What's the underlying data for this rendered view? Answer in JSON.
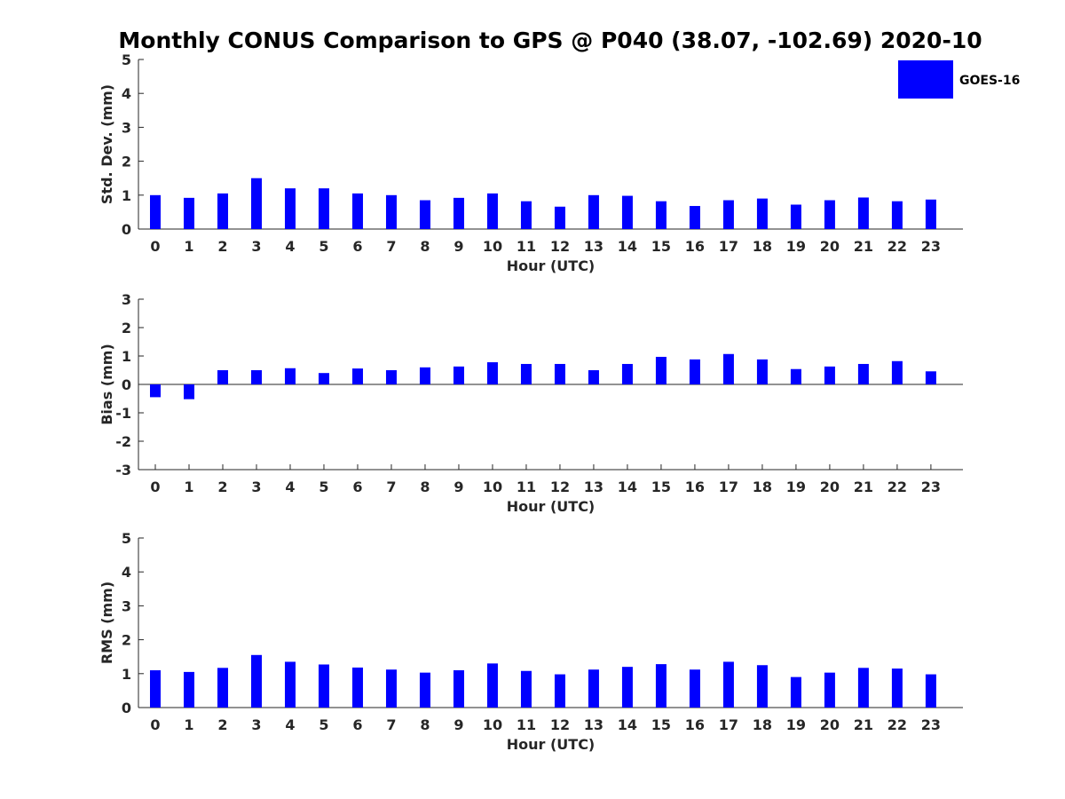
{
  "figure": {
    "title": "Monthly CONUS Comparison to GPS @ P040 (38.07, -102.69) 2020-10",
    "legend": {
      "label": "GOES-16",
      "color": "#0000ff"
    }
  },
  "chart_data": [
    {
      "type": "bar",
      "title": "Monthly CONUS Comparison to GPS @ P040 (38.07, -102.69) 2020-10",
      "xlabel": "Hour (UTC)",
      "ylabel": "Std. Dev. (mm)",
      "categories": [
        "0",
        "1",
        "2",
        "3",
        "4",
        "5",
        "6",
        "7",
        "8",
        "9",
        "10",
        "11",
        "12",
        "13",
        "14",
        "15",
        "16",
        "17",
        "18",
        "19",
        "20",
        "21",
        "22",
        "23"
      ],
      "series": [
        {
          "name": "GOES-16",
          "color": "#0000ff",
          "values": [
            1.0,
            0.92,
            1.05,
            1.5,
            1.2,
            1.2,
            1.05,
            1.0,
            0.85,
            0.92,
            1.05,
            0.82,
            0.66,
            1.0,
            0.98,
            0.82,
            0.68,
            0.85,
            0.9,
            0.72,
            0.85,
            0.93,
            0.82,
            0.87
          ]
        }
      ],
      "ylim": [
        0,
        5
      ],
      "yticks": [
        "0",
        "1",
        "2",
        "3",
        "4",
        "5"
      ],
      "legend": "top-right"
    },
    {
      "type": "bar",
      "xlabel": "Hour (UTC)",
      "ylabel": "Bias (mm)",
      "categories": [
        "0",
        "1",
        "2",
        "3",
        "4",
        "5",
        "6",
        "7",
        "8",
        "9",
        "10",
        "11",
        "12",
        "13",
        "14",
        "15",
        "16",
        "17",
        "18",
        "19",
        "20",
        "21",
        "22",
        "23"
      ],
      "series": [
        {
          "name": "GOES-16",
          "color": "#0000ff",
          "values": [
            -0.45,
            -0.52,
            0.5,
            0.5,
            0.57,
            0.4,
            0.56,
            0.5,
            0.6,
            0.63,
            0.78,
            0.72,
            0.72,
            0.5,
            0.72,
            0.97,
            0.88,
            1.07,
            0.88,
            0.54,
            0.63,
            0.72,
            0.82,
            0.46
          ]
        }
      ],
      "ylim": [
        -3,
        3
      ],
      "yticks": [
        "-3",
        "-2",
        "-1",
        "0",
        "1",
        "2",
        "3"
      ]
    },
    {
      "type": "bar",
      "xlabel": "Hour (UTC)",
      "ylabel": "RMS (mm)",
      "categories": [
        "0",
        "1",
        "2",
        "3",
        "4",
        "5",
        "6",
        "7",
        "8",
        "9",
        "10",
        "11",
        "12",
        "13",
        "14",
        "15",
        "16",
        "17",
        "18",
        "19",
        "20",
        "21",
        "22",
        "23"
      ],
      "series": [
        {
          "name": "GOES-16",
          "color": "#0000ff",
          "values": [
            1.1,
            1.05,
            1.17,
            1.55,
            1.35,
            1.27,
            1.18,
            1.12,
            1.03,
            1.1,
            1.3,
            1.08,
            0.98,
            1.12,
            1.2,
            1.28,
            1.12,
            1.35,
            1.25,
            0.9,
            1.03,
            1.17,
            1.15,
            0.98
          ]
        }
      ],
      "ylim": [
        0,
        5
      ],
      "yticks": [
        "0",
        "1",
        "2",
        "3",
        "4",
        "5"
      ]
    }
  ]
}
